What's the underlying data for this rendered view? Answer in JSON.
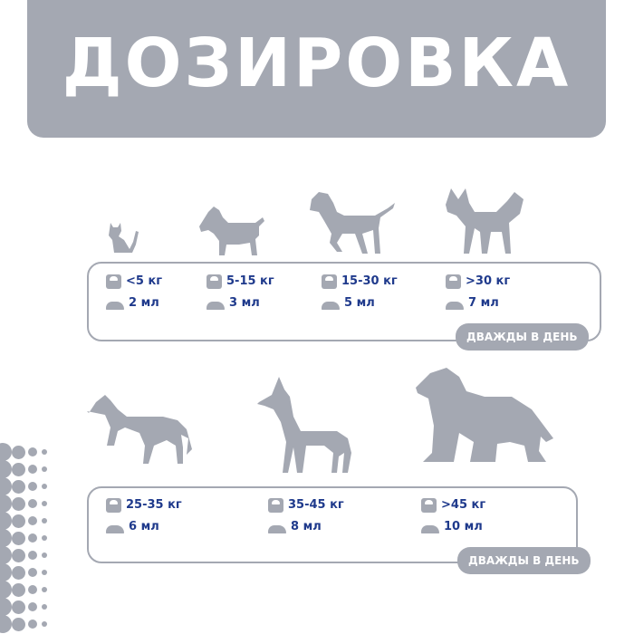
{
  "title": "ДОЗИРОВКА",
  "colors": {
    "accent_gray": "#a4a8b2",
    "text_navy": "#1f3a8c"
  },
  "icons": {
    "weight": "scale-icon",
    "dose": "bowl-icon"
  },
  "groups": [
    {
      "items": [
        {
          "weight": "<5 кг",
          "dose": "2 мл",
          "pet": "cat"
        },
        {
          "weight": "5-15 кг",
          "dose": "3 мл",
          "pet": "schnauzer"
        },
        {
          "weight": "15-30 кг",
          "dose": "5 мл",
          "pet": "pointer"
        },
        {
          "weight": ">30 кг",
          "dose": "7 мл",
          "pet": "husky"
        }
      ],
      "badge": "ДВАЖДЫ В ДЕНЬ"
    },
    {
      "items": [
        {
          "weight": "25-35 кг",
          "dose": "6 мл",
          "pet": "staffordshire"
        },
        {
          "weight": "35-45 кг",
          "dose": "8 мл",
          "pet": "great-dane"
        },
        {
          "weight": ">45 кг",
          "dose": "10 мл",
          "pet": "newfoundland"
        }
      ],
      "badge": "ДВАЖДЫ В ДЕНЬ"
    }
  ]
}
